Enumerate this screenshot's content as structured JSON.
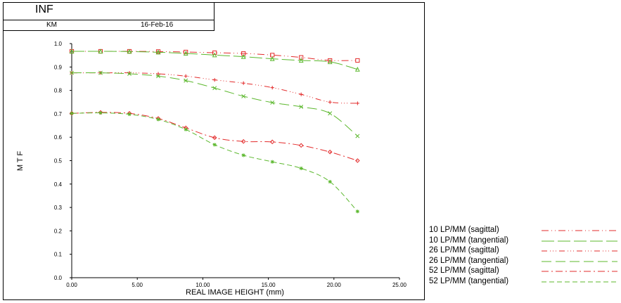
{
  "header": {
    "title": "INF",
    "author": "KM",
    "date": "16-Feb-16"
  },
  "chart_data": {
    "type": "line",
    "title": "",
    "xlabel": "REAL IMAGE HEIGHT (mm)",
    "ylabel": "M T F",
    "xlim": [
      0,
      25
    ],
    "ylim": [
      0,
      1
    ],
    "xticks": [
      "0.00",
      "5.00",
      "10.00",
      "15.00",
      "20.00",
      "25.00"
    ],
    "yticks": [
      "0.0",
      "0.1",
      "0.2",
      "0.3",
      "0.4",
      "0.5",
      "0.6",
      "0.7",
      "0.8",
      "0.9",
      "1.0"
    ],
    "grid": false,
    "legend_position": "bottom-right",
    "series": [
      {
        "name": "10 LP/MM (sagittal)",
        "color": "#e32b2b",
        "dash": "10,4,1,4,1,4",
        "marker": "square",
        "x": [
          0,
          2.2,
          4.4,
          6.6,
          8.7,
          10.9,
          13.1,
          15.3,
          17.5,
          19.7,
          21.8
        ],
        "y": [
          0.967,
          0.967,
          0.967,
          0.966,
          0.964,
          0.961,
          0.958,
          0.951,
          0.941,
          0.928,
          0.928
        ]
      },
      {
        "name": "10 LP/MM (tangential)",
        "color": "#5cb82e",
        "dash": "18,5",
        "marker": "triangle",
        "x": [
          0,
          2.2,
          4.4,
          6.6,
          8.7,
          10.9,
          13.1,
          15.3,
          17.5,
          19.7,
          21.8
        ],
        "y": [
          0.967,
          0.967,
          0.966,
          0.963,
          0.958,
          0.951,
          0.944,
          0.935,
          0.928,
          0.922,
          0.89
        ]
      },
      {
        "name": "26 LP/MM (sagittal)",
        "color": "#e32b2b",
        "dash": "8,4,1,3,1,3,1,4",
        "marker": "plus",
        "x": [
          0,
          2.2,
          4.4,
          6.6,
          8.7,
          10.9,
          13.1,
          15.3,
          17.5,
          19.7,
          21.8
        ],
        "y": [
          0.875,
          0.875,
          0.875,
          0.871,
          0.861,
          0.845,
          0.831,
          0.812,
          0.783,
          0.75,
          0.745
        ]
      },
      {
        "name": "26 LP/MM (tangential)",
        "color": "#5cb82e",
        "dash": "14,6",
        "marker": "x",
        "x": [
          0,
          2.2,
          4.4,
          6.6,
          8.7,
          10.9,
          13.1,
          15.3,
          17.5,
          19.7,
          21.8
        ],
        "y": [
          0.875,
          0.875,
          0.871,
          0.861,
          0.842,
          0.81,
          0.775,
          0.748,
          0.73,
          0.702,
          0.605
        ]
      },
      {
        "name": "52 LP/MM (sagittal)",
        "color": "#e32b2b",
        "dash": "10,4,2,4",
        "marker": "diamond",
        "x": [
          0,
          2.2,
          4.4,
          6.6,
          8.7,
          10.9,
          13.1,
          15.3,
          17.5,
          19.7,
          21.8
        ],
        "y": [
          0.702,
          0.706,
          0.702,
          0.68,
          0.64,
          0.598,
          0.582,
          0.58,
          0.565,
          0.537,
          0.5
        ]
      },
      {
        "name": "52 LP/MM (tangential)",
        "color": "#5cb82e",
        "dash": "7,4",
        "marker": "star",
        "x": [
          0,
          2.2,
          4.4,
          6.6,
          8.7,
          10.9,
          13.1,
          15.3,
          17.5,
          19.7,
          21.8
        ],
        "y": [
          0.702,
          0.704,
          0.698,
          0.676,
          0.633,
          0.568,
          0.523,
          0.495,
          0.467,
          0.41,
          0.283
        ]
      }
    ]
  }
}
